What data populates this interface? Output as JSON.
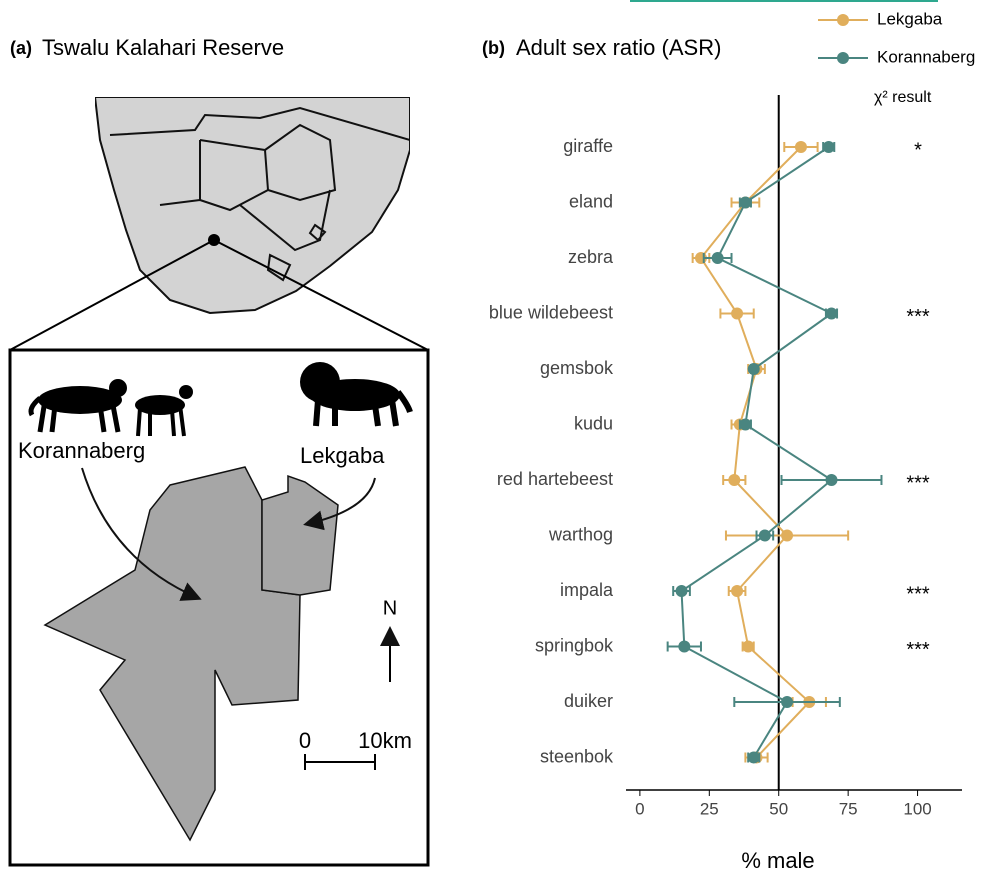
{
  "map": {
    "panel_label": "(a)",
    "title": "Tswalu Kalahari Reserve",
    "labels": [
      "Korannaberg",
      "Lekgaba"
    ],
    "north": "N",
    "scale": [
      "0",
      "10km"
    ]
  },
  "chart_data": {
    "type": "dotplot",
    "panel_label": "(b)",
    "title": "Adult sex ratio (ASR)",
    "x_label": "% male",
    "categories": [
      "giraffe",
      "eland",
      "zebra",
      "blue wildebeest",
      "gemsbok",
      "kudu",
      "red hartebeest",
      "warthog",
      "impala",
      "springbok",
      "duiker",
      "steenbok"
    ],
    "series": [
      {
        "name": "Lekgaba",
        "color": "#e0ae5c",
        "values": [
          58,
          38,
          22,
          35,
          42,
          36,
          34,
          53,
          35,
          39,
          61,
          42
        ],
        "errors": [
          6,
          5,
          3,
          6,
          3,
          3,
          4,
          22,
          3,
          2,
          6,
          4
        ]
      },
      {
        "name": "Korannaberg",
        "color": "#4a8580",
        "values": [
          68,
          38,
          28,
          69,
          41,
          38,
          69,
          45,
          15,
          16,
          53,
          41
        ],
        "errors": [
          2,
          2,
          5,
          2,
          1,
          2,
          18,
          3,
          3,
          6,
          19,
          2
        ]
      }
    ],
    "significance_title": "χ² result",
    "significance": [
      "*",
      null,
      null,
      "***",
      null,
      null,
      "***",
      null,
      "***",
      "***",
      null,
      null
    ],
    "reference_line": 50,
    "xlim": [
      -5,
      116
    ],
    "xticks": [
      0,
      25,
      50,
      75,
      100
    ]
  }
}
